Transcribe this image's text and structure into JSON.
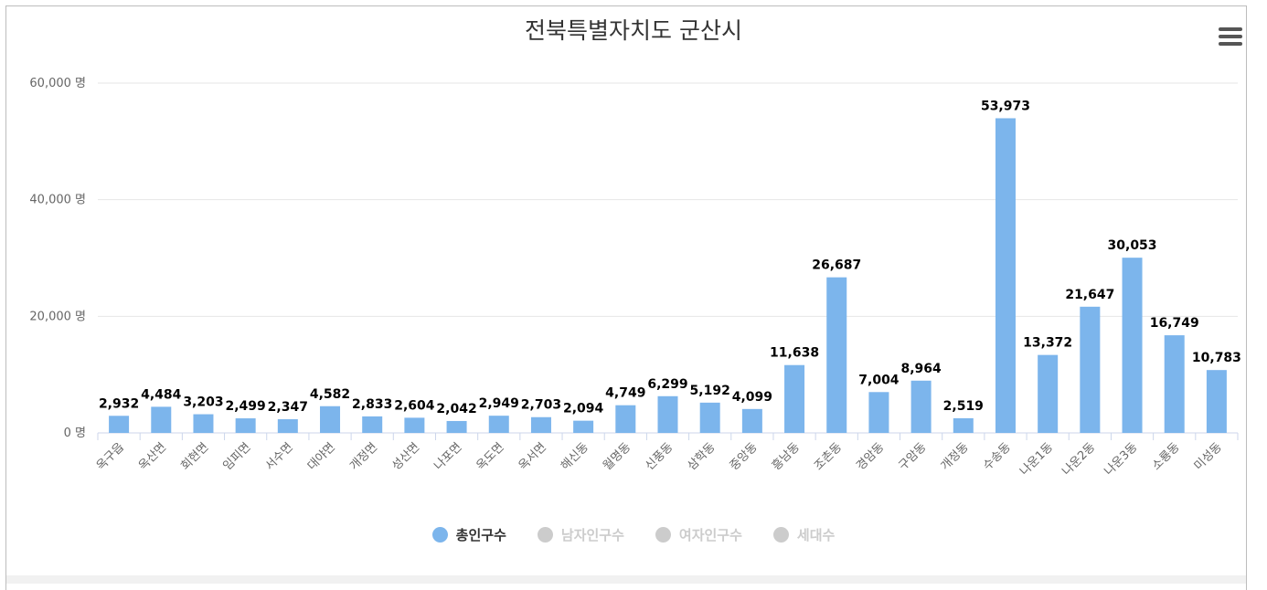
{
  "chart_data": {
    "type": "bar",
    "title": "전북특별자치도 군산시",
    "categories": [
      "옥구읍",
      "옥산면",
      "회현면",
      "임피면",
      "서수면",
      "대야면",
      "개정면",
      "성산면",
      "나포면",
      "옥도면",
      "옥서면",
      "해신동",
      "월명동",
      "신풍동",
      "삼학동",
      "중앙동",
      "흥남동",
      "조촌동",
      "경암동",
      "구암동",
      "개정동",
      "수송동",
      "나운1동",
      "나운2동",
      "나운3동",
      "소룡동",
      "미성동"
    ],
    "series": [
      {
        "name": "총인구수",
        "values": [
          2932,
          4484,
          3203,
          2499,
          2347,
          4582,
          2833,
          2604,
          2042,
          2949,
          2703,
          2094,
          4749,
          6299,
          5192,
          4099,
          11638,
          26687,
          7004,
          8964,
          2519,
          53973,
          13372,
          21647,
          30053,
          16749,
          10783
        ],
        "value_labels": [
          "2,932",
          "4,484",
          "3,203",
          "2,499",
          "2,347",
          "4,582",
          "2,833",
          "2,604",
          "2,042",
          "2,949",
          "2,703",
          "2,094",
          "4,749",
          "6,299",
          "5,192",
          "4,099",
          "11,638",
          "26,687",
          "7,004",
          "8,964",
          "2,519",
          "53,973",
          "13,372",
          "21,647",
          "30,053",
          "16,749",
          "10,783"
        ]
      }
    ],
    "ylim": [
      0,
      60000
    ],
    "yticks": [
      0,
      20000,
      40000,
      60000
    ],
    "ytick_labels": [
      "0 명",
      "20,000 명",
      "40,000 명",
      "60,000 명"
    ],
    "grid": true,
    "legend_position": "bottom-center",
    "bar_color": "#7cb5ec"
  },
  "legend": [
    {
      "label": "총인구수",
      "active": true,
      "color": "#7cb5ec"
    },
    {
      "label": "남자인구수",
      "active": false,
      "color": "#cccccc"
    },
    {
      "label": "여자인구수",
      "active": false,
      "color": "#cccccc"
    },
    {
      "label": "세대수",
      "active": false,
      "color": "#cccccc"
    }
  ],
  "menu_icon": "hamburger-menu-icon"
}
